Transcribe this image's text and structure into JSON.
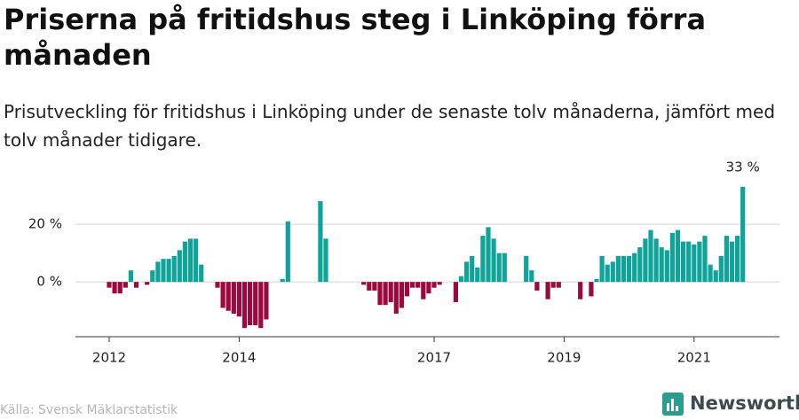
{
  "title": "Priserna på fritidshus steg i Linköping förra månaden",
  "subtitle": "Prisutveckling för fritidshus i Linköping under de senaste tolv månaderna, jämfört med tolv månader tidigare.",
  "source": "Källa: Svensk Mäklarstatistik",
  "logo": "Newsworthy",
  "chart_data": {
    "type": "bar",
    "color_positive": "#0fa39a",
    "color_negative": "#9b0a3e",
    "grid": true,
    "ylim": [
      -19,
      38
    ],
    "yticks": [
      {
        "value": 0,
        "label": "0 %"
      },
      {
        "value": 20,
        "label": "20 %"
      }
    ],
    "categories": [
      "2012",
      null,
      null,
      null,
      null,
      null,
      null,
      null,
      null,
      null,
      null,
      null,
      null,
      null,
      null,
      null,
      null,
      null,
      null,
      null,
      null,
      null,
      null,
      null,
      "2014",
      null,
      null,
      null,
      null,
      null,
      null,
      null,
      null,
      null,
      null,
      null,
      null,
      null,
      null,
      null,
      null,
      null,
      null,
      null,
      null,
      null,
      null,
      null,
      null,
      null,
      null,
      null,
      null,
      null,
      null,
      null,
      null,
      null,
      null,
      null,
      "2017",
      null,
      null,
      null,
      null,
      null,
      null,
      null,
      null,
      null,
      null,
      null,
      null,
      null,
      null,
      null,
      null,
      null,
      null,
      null,
      null,
      null,
      null,
      null,
      "2019",
      null,
      null,
      null,
      null,
      null,
      null,
      null,
      null,
      null,
      null,
      null,
      null,
      null,
      null,
      null,
      null,
      null,
      null,
      null,
      null,
      null,
      null,
      null,
      "2021",
      null,
      null,
      null,
      null,
      null,
      null,
      null,
      null,
      null
    ],
    "values": [
      -2,
      -4,
      -4,
      -2,
      4,
      -2,
      0,
      -1,
      4,
      7,
      8,
      8,
      9,
      11,
      14,
      15,
      15,
      6,
      0,
      0,
      -2,
      -9,
      -10,
      -11,
      -12,
      -16,
      -15,
      -15,
      -16,
      -13,
      0,
      0,
      1,
      21,
      0,
      0,
      0,
      0,
      0,
      28,
      15,
      0,
      0,
      0,
      0,
      0,
      0,
      -1,
      -3,
      -3,
      -8,
      -8,
      -7,
      -11,
      -9,
      -5,
      -2,
      -2,
      -6,
      -4,
      -2,
      -1,
      0,
      0,
      -7,
      2,
      7,
      9,
      5,
      16,
      19,
      15,
      10,
      10,
      0,
      0,
      0,
      9,
      4,
      -3,
      0,
      -6,
      -2,
      -2,
      0,
      0,
      0,
      -6,
      0,
      -5,
      1,
      9,
      6,
      7,
      9,
      9,
      9,
      10,
      12,
      15,
      18,
      15,
      12,
      11,
      17,
      18,
      14,
      14,
      13,
      14,
      16,
      6,
      4,
      9,
      16,
      14,
      16,
      33
    ],
    "value_labels": [
      null,
      null,
      null,
      null,
      null,
      null,
      null,
      null,
      null,
      null,
      null,
      null,
      null,
      null,
      null,
      null,
      null,
      null,
      null,
      null,
      null,
      null,
      null,
      null,
      null,
      null,
      null,
      null,
      null,
      null,
      null,
      null,
      null,
      null,
      null,
      null,
      null,
      null,
      null,
      null,
      null,
      null,
      null,
      null,
      null,
      null,
      null,
      null,
      null,
      null,
      null,
      null,
      null,
      null,
      null,
      null,
      null,
      null,
      null,
      null,
      null,
      null,
      null,
      null,
      null,
      null,
      null,
      null,
      null,
      null,
      null,
      null,
      null,
      null,
      null,
      null,
      null,
      null,
      null,
      null,
      null,
      null,
      null,
      null,
      null,
      null,
      null,
      null,
      null,
      null,
      null,
      null,
      null,
      null,
      null,
      null,
      null,
      null,
      null,
      null,
      null,
      null,
      null,
      null,
      null,
      null,
      null,
      null,
      null,
      null,
      null,
      null,
      null,
      null,
      null,
      null,
      null,
      "33 %"
    ]
  }
}
